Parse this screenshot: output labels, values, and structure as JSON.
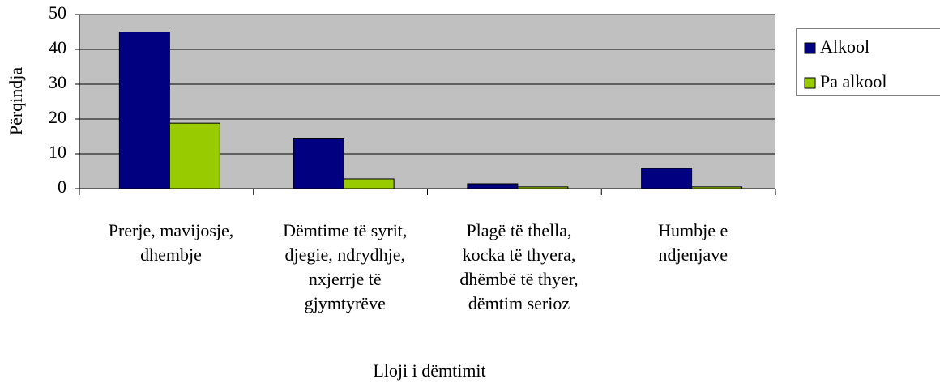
{
  "chart_data": {
    "type": "bar",
    "x_label": "Lloji i dëmtimit",
    "y_label": "Përqindja",
    "categories": [
      "Prerje, mavijosje,\ndhembje",
      "Dëmtime të syrit,\ndjegie, ndrydhje,\nnxjerrje të\ngjymtyrëve",
      "Plagë të thella,\nkocka të thyera,\ndhëmbë të thyer,\ndëmtim serioz",
      "Humbje e\nndjenjave"
    ],
    "series": [
      {
        "name": "Alkool",
        "color": "#000080",
        "values": [
          45,
          14.3,
          1.4,
          5.8
        ]
      },
      {
        "name": "Pa alkool",
        "color": "#99cc00",
        "values": [
          18.8,
          2.8,
          0.5,
          0.5
        ]
      }
    ],
    "ylim": [
      0,
      50
    ],
    "yticks": [
      0,
      10,
      20,
      30,
      40,
      50
    ],
    "grid": true,
    "legend": "right"
  }
}
